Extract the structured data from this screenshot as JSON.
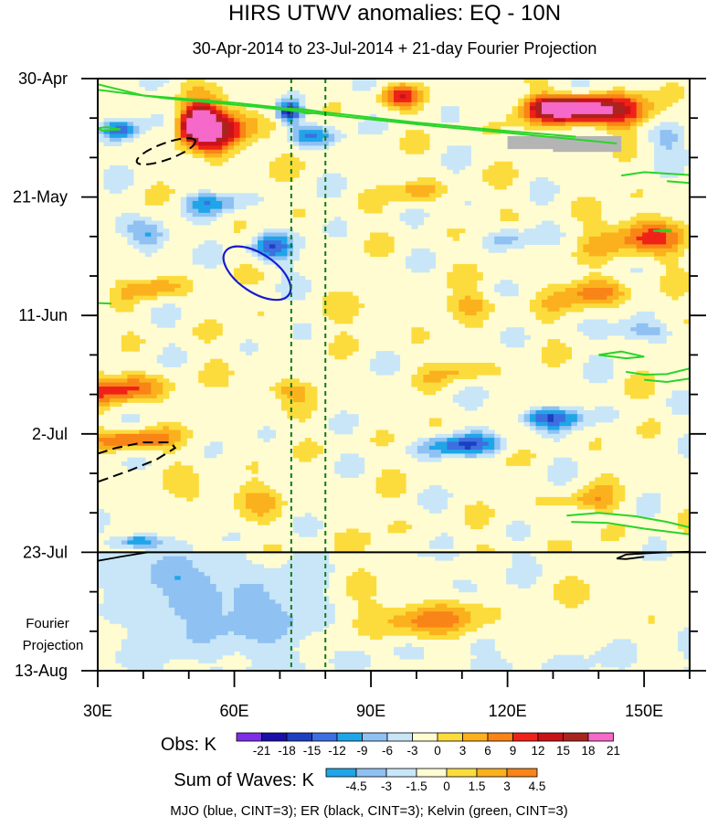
{
  "chart_data": {
    "type": "heatmap",
    "title": "HIRS UTWV anomalies: EQ - 10N",
    "subtitle": "30-Apr-2014 to 23-Jul-2014 + 21-day Fourier Projection",
    "x_axis": {
      "range": [
        30,
        160
      ],
      "ticks": [
        30,
        60,
        90,
        120,
        150
      ],
      "tick_labels": [
        "30E",
        "60E",
        "90E",
        "120E",
        "150E"
      ]
    },
    "y_axis": {
      "range_days": [
        0,
        105
      ],
      "ticks": [
        0,
        21,
        42,
        63,
        84,
        105
      ],
      "tick_labels": [
        "30-Apr",
        "21-May",
        "11-Jun",
        "2-Jul",
        "23-Jul",
        "13-Aug"
      ]
    },
    "projection_label": [
      "Fourier",
      "Projection"
    ],
    "observation_end_day": 84,
    "reference_longitudes": [
      72.5,
      80
    ],
    "obs_legend": {
      "label": "Obs: K",
      "levels": [
        "-21",
        "-18",
        "-15",
        "-12",
        "-9",
        "-6",
        "-3",
        "0",
        "3",
        "6",
        "9",
        "12",
        "15",
        "18",
        "21"
      ],
      "colors": [
        "#7d2ee6",
        "#1a0fa8",
        "#1e3fbf",
        "#3d6fe0",
        "#1fa5e8",
        "#8fc1f2",
        "#c8e6f8",
        "#fffcd2",
        "#fcdc3c",
        "#fbb11d",
        "#f98417",
        "#ef2218",
        "#c91318",
        "#a8251e",
        "#f569c9"
      ]
    },
    "waves_legend": {
      "label": "Sum of Waves: K",
      "levels": [
        "-4.5",
        "-3",
        "-1.5",
        "0",
        "1.5",
        "3",
        "4.5"
      ],
      "colors": [
        "#1fa5e8",
        "#8fc1f2",
        "#c8e6f8",
        "#fffcd2",
        "#fcdc3c",
        "#fbb11d",
        "#f98417"
      ]
    },
    "footer": "MJO (blue, CINT=3); ER (black, CINT=3); Kelvin (green, CINT=3)",
    "contours": {
      "mjo": {
        "color": "#1a1acd",
        "cint": 3,
        "centers": [
          [
            65,
            34
          ]
        ]
      },
      "er": {
        "color": "#000000",
        "cint": 3,
        "centers": [
          [
            47,
            12
          ],
          [
            38,
            66
          ]
        ]
      },
      "kelvin": {
        "color": "#2ad42a",
        "cint": 3
      }
    },
    "anomaly_field": {
      "units": "K",
      "blobs": [
        [
          58,
          9,
          7,
          5,
          8
        ],
        [
          52,
          8,
          4,
          3,
          11
        ],
        [
          140,
          6,
          14,
          3,
          7
        ],
        [
          133,
          5,
          8,
          2,
          9
        ],
        [
          96,
          3,
          5,
          2,
          5
        ],
        [
          72,
          6,
          3,
          2,
          -9
        ],
        [
          76,
          10,
          6,
          2,
          -5
        ],
        [
          35,
          9,
          4,
          2,
          -5
        ],
        [
          55,
          22,
          7,
          2,
          -4
        ],
        [
          42,
          28,
          5,
          3,
          -5
        ],
        [
          68,
          30,
          5,
          3,
          -6
        ],
        [
          100,
          20,
          6,
          2,
          3
        ],
        [
          150,
          28,
          9,
          4,
          6
        ],
        [
          138,
          38,
          10,
          3,
          4
        ],
        [
          112,
          40,
          8,
          2,
          3
        ],
        [
          43,
          37,
          6,
          2,
          4
        ],
        [
          35,
          55,
          9,
          3,
          6
        ],
        [
          70,
          55,
          8,
          2,
          3
        ],
        [
          110,
          52,
          6,
          2,
          3
        ],
        [
          150,
          45,
          8,
          2,
          -4
        ],
        [
          129,
          60,
          8,
          2,
          -6
        ],
        [
          110,
          65,
          9,
          2,
          -6
        ],
        [
          137,
          75,
          8,
          2,
          3
        ],
        [
          38,
          64,
          8,
          2,
          6
        ],
        [
          39,
          82,
          5,
          1.5,
          -7
        ],
        [
          59,
          74,
          10,
          3,
          3
        ],
        [
          155,
          10,
          6,
          3,
          -3
        ],
        [
          90,
          42,
          6,
          3,
          2
        ],
        [
          120,
          28,
          5,
          2,
          -3
        ],
        [
          60,
          95,
          15,
          6,
          -2
        ],
        [
          45,
          88,
          10,
          3,
          -2
        ],
        [
          104,
          96,
          12,
          3,
          4
        ],
        [
          140,
          92,
          20,
          8,
          1
        ],
        [
          90,
          90,
          8,
          12,
          1
        ]
      ]
    }
  }
}
